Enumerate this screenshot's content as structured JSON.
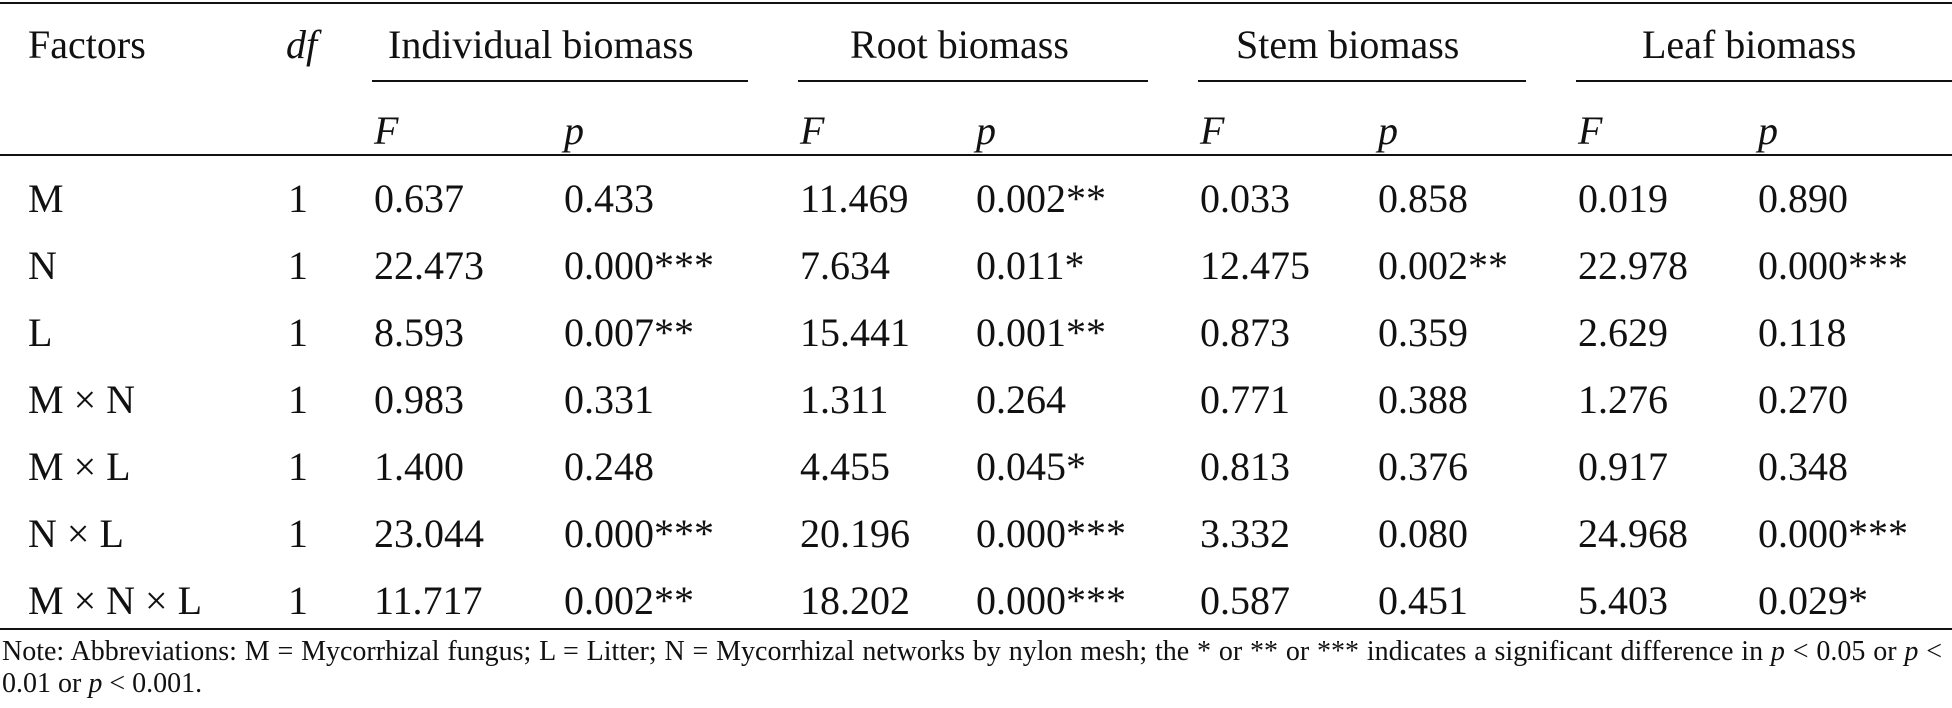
{
  "table": {
    "headers": {
      "factors": "Factors",
      "df": "df",
      "groups": [
        "Individual biomass",
        "Root biomass",
        "Stem biomass",
        "Leaf biomass"
      ],
      "f_label": "F",
      "p_label": "p"
    },
    "rows": [
      {
        "factor": "M",
        "df": "1",
        "values": [
          "0.637",
          "0.433",
          "11.469",
          "0.002**",
          "0.033",
          "0.858",
          "0.019",
          "0.890"
        ]
      },
      {
        "factor": "N",
        "df": "1",
        "values": [
          "22.473",
          "0.000***",
          "7.634",
          "0.011*",
          "12.475",
          "0.002**",
          "22.978",
          "0.000***"
        ]
      },
      {
        "factor": "L",
        "df": "1",
        "values": [
          "8.593",
          "0.007**",
          "15.441",
          "0.001**",
          "0.873",
          "0.359",
          "2.629",
          "0.118"
        ]
      },
      {
        "factor": "M × N",
        "df": "1",
        "values": [
          "0.983",
          "0.331",
          "1.311",
          "0.264",
          "0.771",
          "0.388",
          "1.276",
          "0.270"
        ]
      },
      {
        "factor": "M × L",
        "df": "1",
        "values": [
          "1.400",
          "0.248",
          "4.455",
          "0.045*",
          "0.813",
          "0.376",
          "0.917",
          "0.348"
        ]
      },
      {
        "factor": "N × L",
        "df": "1",
        "values": [
          "23.044",
          "0.000***",
          "20.196",
          "0.000***",
          "3.332",
          "0.080",
          "24.968",
          "0.000***"
        ]
      },
      {
        "factor": "M × N × L",
        "df": "1",
        "values": [
          "11.717",
          "0.002**",
          "18.202",
          "0.000***",
          "0.587",
          "0.451",
          "5.403",
          "0.029*"
        ]
      }
    ]
  },
  "note": {
    "part1": "Note: Abbreviations: M = Mycorrhizal fungus; L = Litter; N = Mycorrhizal networks by nylon mesh; the * or ** or *** indicates a significant difference in ",
    "p1": "p",
    "part2": " < 0.05 or ",
    "p2": "p",
    "part3": " < 0.01 or ",
    "p3": "p",
    "part4": " < 0.001."
  }
}
